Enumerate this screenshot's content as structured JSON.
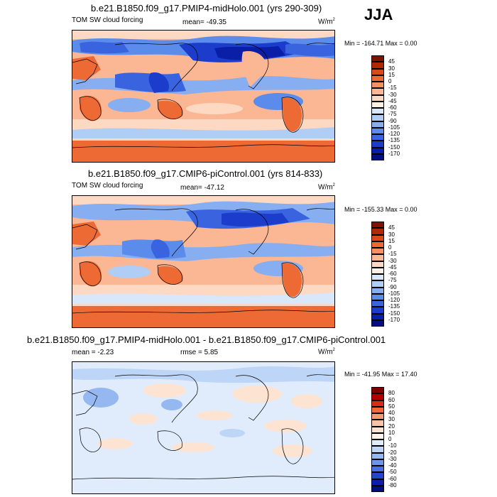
{
  "season": "JJA",
  "units": "W/m2",
  "panels": [
    {
      "title": "b.e21.B1850.f09_g17.PMIP4-midHolo.001 (yrs 290-309)",
      "variable": "TOM SW cloud forcing",
      "stat": "mean= -49.35",
      "units": "W/m",
      "units_sup": "2",
      "minmax": "Min = -164.71 Max =   0.00",
      "colorbar": [
        "45",
        "30",
        "15",
        "0",
        "-15",
        "-30",
        "-45",
        "-60",
        "-75",
        "-90",
        "-105",
        "-120",
        "-135",
        "-150",
        "-170"
      ]
    },
    {
      "title": "b.e21.B1850.f09_g17.CMIP6-piControl.001 (yrs 814-833)",
      "variable": "TOM SW cloud forcing",
      "stat": "mean= -47.12",
      "units": "W/m",
      "units_sup": "2",
      "minmax": "Min = -155.33 Max =   0.00",
      "colorbar": [
        "45",
        "30",
        "15",
        "0",
        "-15",
        "-30",
        "-45",
        "-60",
        "-75",
        "-90",
        "-105",
        "-120",
        "-135",
        "-150",
        "-170"
      ]
    },
    {
      "title": "b.e21.B1850.f09_g17.PMIP4-midHolo.001 - b.e21.B1850.f09_g17.CMIP6-piControl.001",
      "variable": "mean =  -2.23",
      "stat": "rmse =   5.85",
      "units": "W/m",
      "units_sup": "2",
      "minmax": "Min = -41.95 Max = 17.40",
      "colorbar": [
        "80",
        "60",
        "50",
        "40",
        "30",
        "20",
        "10",
        "0",
        "-10",
        "-20",
        "-30",
        "-40",
        "-50",
        "-60",
        "-80"
      ]
    }
  ],
  "colors": {
    "abs_scale": [
      "#7f1200",
      "#b22800",
      "#d94a1a",
      "#ee6a35",
      "#f59060",
      "#fbb694",
      "#fdd9c4",
      "#fff0e6",
      "#d9e7fa",
      "#b0cdf5",
      "#86aef0",
      "#5c8ceb",
      "#3a63e0",
      "#1c3dcc",
      "#0a1fa8",
      "#000e80"
    ],
    "diff_scale": [
      "#7f0000",
      "#b20000",
      "#d92d1a",
      "#ef6a3c",
      "#f59a73",
      "#fac3a6",
      "#fde3d2",
      "#fff3ea",
      "#e0ecfb",
      "#bdd5f6",
      "#96b8f1",
      "#6d96eb",
      "#4871e4",
      "#2446cc",
      "#0c1eab",
      "#000e80"
    ],
    "ocean_abs": "#fbb694",
    "ocean_diff": "#e0ecfb"
  }
}
